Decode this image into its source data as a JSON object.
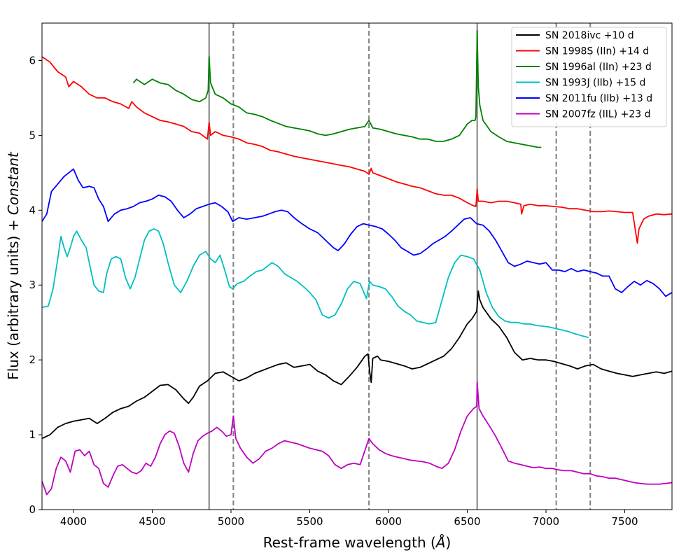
{
  "chart_data": {
    "type": "line",
    "title": "",
    "xlabel_main": "Rest-frame wavelength (",
    "xlabel_unit": "Å",
    "xlabel_end": ")",
    "ylabel_main": "Flux (arbitrary units) + ",
    "ylabel_italic": "Constant",
    "xlim": [
      3800,
      7800
    ],
    "ylim": [
      0,
      6.5
    ],
    "xticks": [
      "4000",
      "4500",
      "5000",
      "5500",
      "6000",
      "6500",
      "7000",
      "7500"
    ],
    "yticks": [
      "0",
      "1",
      "2",
      "3",
      "4",
      "5",
      "6"
    ],
    "grid": false,
    "legend_position": "top-right",
    "vlines_solid": [
      4861,
      6563
    ],
    "vlines_dashed": [
      5015,
      5876,
      7065,
      7281
    ],
    "vline_color": "#808080",
    "series": [
      {
        "name": "SN 2018ivc +10 d",
        "color": "#000000",
        "x": [
          3800,
          3850,
          3900,
          3950,
          4000,
          4050,
          4100,
          4150,
          4200,
          4250,
          4300,
          4350,
          4400,
          4450,
          4500,
          4550,
          4600,
          4650,
          4700,
          4730,
          4760,
          4800,
          4850,
          4900,
          4950,
          5000,
          5050,
          5100,
          5150,
          5200,
          5250,
          5300,
          5350,
          5400,
          5450,
          5500,
          5550,
          5600,
          5650,
          5700,
          5750,
          5800,
          5850,
          5870,
          5880,
          5890,
          5900,
          5930,
          5950,
          6000,
          6050,
          6100,
          6150,
          6200,
          6250,
          6300,
          6350,
          6400,
          6450,
          6500,
          6530,
          6560,
          6570,
          6580,
          6600,
          6650,
          6700,
          6750,
          6800,
          6850,
          6900,
          6950,
          7000,
          7050,
          7100,
          7150,
          7200,
          7250,
          7300,
          7350,
          7400,
          7450,
          7500,
          7550,
          7600,
          7650,
          7700,
          7750,
          7800
        ],
        "y": [
          0.95,
          1.0,
          1.1,
          1.15,
          1.18,
          1.2,
          1.22,
          1.15,
          1.22,
          1.3,
          1.35,
          1.38,
          1.45,
          1.5,
          1.58,
          1.66,
          1.67,
          1.6,
          1.48,
          1.42,
          1.5,
          1.65,
          1.72,
          1.82,
          1.84,
          1.78,
          1.72,
          1.76,
          1.82,
          1.86,
          1.9,
          1.94,
          1.96,
          1.9,
          1.92,
          1.94,
          1.85,
          1.8,
          1.72,
          1.67,
          1.78,
          1.9,
          2.05,
          2.08,
          1.85,
          1.7,
          2.02,
          2.05,
          2.0,
          1.98,
          1.95,
          1.92,
          1.88,
          1.9,
          1.95,
          2.0,
          2.05,
          2.15,
          2.3,
          2.48,
          2.55,
          2.65,
          2.92,
          2.8,
          2.7,
          2.55,
          2.45,
          2.3,
          2.1,
          2.0,
          2.02,
          2.0,
          2.0,
          1.98,
          1.95,
          1.92,
          1.88,
          1.92,
          1.94,
          1.88,
          1.85,
          1.82,
          1.8,
          1.78,
          1.8,
          1.82,
          1.84,
          1.82,
          1.85
        ]
      },
      {
        "name": "SN 1998S (IIn) +14 d",
        "color": "#ff0000",
        "x": [
          3800,
          3850,
          3900,
          3950,
          3970,
          4000,
          4050,
          4100,
          4150,
          4200,
          4250,
          4300,
          4350,
          4370,
          4400,
          4450,
          4500,
          4550,
          4600,
          4650,
          4700,
          4750,
          4800,
          4850,
          4861,
          4870,
          4900,
          4950,
          5000,
          5050,
          5100,
          5150,
          5200,
          5250,
          5300,
          5350,
          5400,
          5450,
          5500,
          5550,
          5600,
          5650,
          5700,
          5750,
          5800,
          5850,
          5876,
          5890,
          5900,
          5950,
          6000,
          6050,
          6100,
          6150,
          6200,
          6250,
          6300,
          6350,
          6400,
          6450,
          6500,
          6540,
          6555,
          6563,
          6570,
          6600,
          6650,
          6700,
          6750,
          6800,
          6840,
          6845,
          6860,
          6900,
          6950,
          7000,
          7050,
          7100,
          7150,
          7200,
          7250,
          7300,
          7350,
          7400,
          7450,
          7500,
          7550,
          7580,
          7590,
          7620,
          7650,
          7700,
          7750,
          7800
        ],
        "y": [
          6.05,
          5.98,
          5.85,
          5.78,
          5.65,
          5.72,
          5.65,
          5.55,
          5.5,
          5.5,
          5.45,
          5.42,
          5.36,
          5.45,
          5.38,
          5.3,
          5.25,
          5.2,
          5.18,
          5.15,
          5.12,
          5.05,
          5.03,
          4.95,
          5.17,
          5.0,
          5.05,
          5.0,
          4.98,
          4.95,
          4.9,
          4.88,
          4.85,
          4.8,
          4.78,
          4.75,
          4.72,
          4.7,
          4.68,
          4.66,
          4.64,
          4.62,
          4.6,
          4.58,
          4.55,
          4.52,
          4.48,
          4.56,
          4.5,
          4.46,
          4.42,
          4.38,
          4.35,
          4.32,
          4.3,
          4.26,
          4.22,
          4.2,
          4.2,
          4.16,
          4.1,
          4.06,
          4.05,
          4.28,
          4.12,
          4.12,
          4.1,
          4.12,
          4.12,
          4.1,
          4.08,
          3.95,
          4.06,
          4.08,
          4.06,
          4.06,
          4.05,
          4.04,
          4.02,
          4.02,
          4.0,
          3.98,
          3.98,
          3.99,
          3.98,
          3.97,
          3.97,
          3.56,
          3.75,
          3.88,
          3.92,
          3.95,
          3.94,
          3.95
        ]
      },
      {
        "name": "SN 1996al (IIn) +23 d",
        "color": "#008000",
        "x": [
          4380,
          4400,
          4450,
          4500,
          4550,
          4600,
          4650,
          4700,
          4750,
          4800,
          4840,
          4855,
          4861,
          4870,
          4900,
          4950,
          5000,
          5050,
          5100,
          5150,
          5200,
          5250,
          5300,
          5350,
          5400,
          5450,
          5500,
          5550,
          5600,
          5650,
          5700,
          5750,
          5800,
          5850,
          5876,
          5900,
          5950,
          6000,
          6050,
          6100,
          6150,
          6200,
          6250,
          6300,
          6350,
          6400,
          6450,
          6500,
          6530,
          6550,
          6555,
          6563,
          6570,
          6580,
          6600,
          6650,
          6700,
          6750,
          6800,
          6850,
          6900,
          6950,
          6970
        ],
        "y": [
          5.7,
          5.75,
          5.68,
          5.75,
          5.7,
          5.68,
          5.6,
          5.55,
          5.48,
          5.45,
          5.5,
          5.6,
          6.05,
          5.7,
          5.55,
          5.5,
          5.42,
          5.38,
          5.3,
          5.28,
          5.25,
          5.2,
          5.16,
          5.12,
          5.1,
          5.08,
          5.06,
          5.02,
          5.0,
          5.02,
          5.05,
          5.08,
          5.1,
          5.12,
          5.2,
          5.1,
          5.08,
          5.05,
          5.02,
          5.0,
          4.98,
          4.95,
          4.95,
          4.92,
          4.92,
          4.95,
          5.0,
          5.15,
          5.2,
          5.2,
          5.25,
          6.4,
          5.65,
          5.4,
          5.2,
          5.05,
          4.98,
          4.92,
          4.9,
          4.88,
          4.86,
          4.84,
          4.84
        ]
      },
      {
        "name": "SN 1993J (IIb) +15 d",
        "color": "#00bfbf",
        "x": [
          3800,
          3840,
          3870,
          3900,
          3920,
          3940,
          3960,
          3980,
          4000,
          4020,
          4050,
          4080,
          4100,
          4130,
          4160,
          4190,
          4210,
          4240,
          4270,
          4300,
          4330,
          4360,
          4390,
          4420,
          4450,
          4480,
          4510,
          4540,
          4570,
          4600,
          4640,
          4680,
          4720,
          4760,
          4800,
          4840,
          4870,
          4900,
          4930,
          4960,
          4990,
          5010,
          5040,
          5080,
          5120,
          5160,
          5200,
          5260,
          5300,
          5340,
          5380,
          5420,
          5460,
          5500,
          5540,
          5580,
          5620,
          5660,
          5700,
          5740,
          5780,
          5820,
          5860,
          5880,
          5900,
          5940,
          5980,
          6020,
          6060,
          6100,
          6140,
          6180,
          6220,
          6260,
          6300,
          6340,
          6380,
          6420,
          6460,
          6500,
          6540,
          6580,
          6620,
          6660,
          6700,
          6740,
          6780,
          6820,
          6860,
          6900,
          6940,
          6980,
          7020,
          7060,
          7100,
          7140,
          7180,
          7200,
          7230,
          7270
        ],
        "y": [
          2.7,
          2.72,
          2.95,
          3.35,
          3.65,
          3.5,
          3.38,
          3.5,
          3.65,
          3.72,
          3.6,
          3.5,
          3.3,
          3.0,
          2.92,
          2.9,
          3.15,
          3.35,
          3.38,
          3.35,
          3.1,
          2.95,
          3.1,
          3.35,
          3.6,
          3.72,
          3.75,
          3.72,
          3.55,
          3.3,
          3.0,
          2.9,
          3.05,
          3.25,
          3.4,
          3.45,
          3.35,
          3.3,
          3.4,
          3.2,
          2.98,
          2.95,
          3.02,
          3.05,
          3.12,
          3.18,
          3.2,
          3.3,
          3.25,
          3.15,
          3.1,
          3.05,
          2.98,
          2.9,
          2.8,
          2.6,
          2.56,
          2.6,
          2.75,
          2.95,
          3.05,
          3.02,
          2.82,
          3.05,
          3.0,
          2.98,
          2.95,
          2.85,
          2.72,
          2.65,
          2.6,
          2.52,
          2.5,
          2.48,
          2.5,
          2.8,
          3.1,
          3.3,
          3.4,
          3.38,
          3.35,
          3.2,
          2.9,
          2.7,
          2.58,
          2.52,
          2.5,
          2.5,
          2.48,
          2.48,
          2.46,
          2.45,
          2.44,
          2.42,
          2.4,
          2.38,
          2.35,
          2.34,
          2.32,
          2.3
        ]
      },
      {
        "name": "SN 2011fu (IIb) +13 d",
        "color": "#0000ff",
        "x": [
          3800,
          3830,
          3860,
          3900,
          3940,
          3970,
          4000,
          4030,
          4060,
          4100,
          4130,
          4160,
          4190,
          4220,
          4260,
          4300,
          4340,
          4380,
          4420,
          4460,
          4500,
          4540,
          4580,
          4620,
          4660,
          4700,
          4740,
          4780,
          4820,
          4860,
          4900,
          4940,
          4980,
          5010,
          5050,
          5100,
          5150,
          5200,
          5240,
          5280,
          5320,
          5360,
          5400,
          5450,
          5500,
          5550,
          5600,
          5650,
          5680,
          5720,
          5760,
          5800,
          5840,
          5880,
          5920,
          5960,
          6000,
          6040,
          6080,
          6120,
          6160,
          6200,
          6240,
          6280,
          6320,
          6360,
          6400,
          6440,
          6480,
          6520,
          6560,
          6600,
          6640,
          6680,
          6720,
          6760,
          6800,
          6840,
          6880,
          6920,
          6960,
          7000,
          7040,
          7080,
          7120,
          7160,
          7200,
          7240,
          7280,
          7320,
          7360,
          7400,
          7440,
          7480,
          7520,
          7560,
          7600,
          7640,
          7680,
          7720,
          7760,
          7800
        ],
        "y": [
          3.85,
          3.95,
          4.25,
          4.35,
          4.45,
          4.5,
          4.55,
          4.4,
          4.3,
          4.32,
          4.3,
          4.15,
          4.05,
          3.85,
          3.95,
          4.0,
          4.02,
          4.05,
          4.1,
          4.12,
          4.15,
          4.2,
          4.18,
          4.12,
          4.0,
          3.9,
          3.95,
          4.02,
          4.05,
          4.08,
          4.1,
          4.05,
          3.98,
          3.85,
          3.9,
          3.88,
          3.9,
          3.92,
          3.95,
          3.98,
          4.0,
          3.98,
          3.9,
          3.82,
          3.75,
          3.7,
          3.6,
          3.5,
          3.46,
          3.55,
          3.68,
          3.78,
          3.82,
          3.8,
          3.78,
          3.75,
          3.68,
          3.6,
          3.5,
          3.45,
          3.4,
          3.42,
          3.48,
          3.55,
          3.6,
          3.65,
          3.72,
          3.8,
          3.88,
          3.9,
          3.82,
          3.8,
          3.72,
          3.6,
          3.45,
          3.3,
          3.25,
          3.28,
          3.32,
          3.3,
          3.28,
          3.3,
          3.2,
          3.2,
          3.18,
          3.22,
          3.18,
          3.2,
          3.18,
          3.16,
          3.12,
          3.12,
          2.95,
          2.9,
          2.98,
          3.05,
          3.0,
          3.06,
          3.02,
          2.95,
          2.85,
          2.9
        ]
      },
      {
        "name": "SN 2007fz (IIL) +23 d",
        "color": "#bf00bf",
        "x": [
          3800,
          3830,
          3860,
          3890,
          3920,
          3950,
          3980,
          4010,
          4040,
          4070,
          4100,
          4130,
          4160,
          4190,
          4220,
          4250,
          4280,
          4310,
          4340,
          4370,
          4400,
          4430,
          4460,
          4490,
          4520,
          4550,
          4580,
          4610,
          4640,
          4670,
          4700,
          4730,
          4760,
          4790,
          4820,
          4850,
          4880,
          4910,
          4940,
          4970,
          5000,
          5015,
          5030,
          5060,
          5100,
          5140,
          5180,
          5220,
          5260,
          5300,
          5340,
          5380,
          5420,
          5460,
          5500,
          5540,
          5580,
          5620,
          5660,
          5700,
          5740,
          5780,
          5820,
          5860,
          5876,
          5900,
          5940,
          5980,
          6020,
          6060,
          6100,
          6140,
          6180,
          6220,
          6260,
          6300,
          6340,
          6380,
          6420,
          6460,
          6500,
          6540,
          6560,
          6563,
          6575,
          6600,
          6640,
          6680,
          6720,
          6760,
          6800,
          6840,
          6880,
          6920,
          6960,
          7000,
          7040,
          7080,
          7120,
          7160,
          7200,
          7240,
          7280,
          7320,
          7360,
          7400,
          7440,
          7480,
          7520,
          7560,
          7600,
          7640,
          7680,
          7720,
          7760,
          7800
        ],
        "y": [
          0.38,
          0.2,
          0.28,
          0.55,
          0.7,
          0.65,
          0.5,
          0.78,
          0.8,
          0.72,
          0.78,
          0.6,
          0.55,
          0.35,
          0.3,
          0.45,
          0.58,
          0.6,
          0.55,
          0.5,
          0.48,
          0.52,
          0.62,
          0.58,
          0.7,
          0.88,
          1.0,
          1.05,
          1.02,
          0.85,
          0.62,
          0.5,
          0.75,
          0.92,
          0.98,
          1.02,
          1.05,
          1.1,
          1.05,
          0.98,
          1.0,
          1.25,
          0.95,
          0.82,
          0.7,
          0.62,
          0.68,
          0.78,
          0.82,
          0.88,
          0.92,
          0.9,
          0.88,
          0.85,
          0.82,
          0.8,
          0.78,
          0.72,
          0.6,
          0.55,
          0.6,
          0.62,
          0.6,
          0.85,
          0.95,
          0.88,
          0.8,
          0.75,
          0.72,
          0.7,
          0.68,
          0.66,
          0.65,
          0.64,
          0.62,
          0.58,
          0.55,
          0.62,
          0.8,
          1.05,
          1.25,
          1.35,
          1.38,
          1.7,
          1.35,
          1.25,
          1.12,
          0.98,
          0.82,
          0.65,
          0.62,
          0.6,
          0.58,
          0.56,
          0.57,
          0.55,
          0.55,
          0.53,
          0.52,
          0.52,
          0.5,
          0.48,
          0.48,
          0.45,
          0.44,
          0.42,
          0.42,
          0.4,
          0.38,
          0.36,
          0.35,
          0.34,
          0.34,
          0.34,
          0.35,
          0.36
        ]
      }
    ]
  }
}
